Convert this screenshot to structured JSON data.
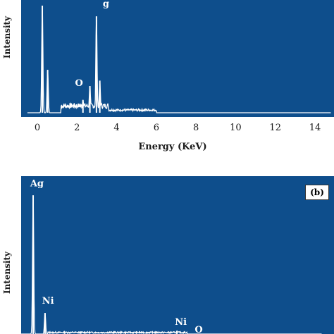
{
  "chart_data": [
    {
      "panel": "a",
      "type": "line",
      "xlabel": "Energy (KeV)",
      "ylabel": "Intensity",
      "xlim": [
        -0.5,
        14.8
      ],
      "xticks": [
        0,
        2,
        4,
        6,
        8,
        10,
        12,
        14
      ],
      "ylim": [
        0,
        1
      ],
      "grid": false,
      "peaks": [
        {
          "x": 0.25,
          "y": 1.0
        },
        {
          "x": 0.52,
          "y": 0.4
        },
        {
          "x": 2.3,
          "y": 0.12
        },
        {
          "x": 2.65,
          "y": 0.25
        },
        {
          "x": 2.98,
          "y": 0.9
        },
        {
          "x": 3.15,
          "y": 0.3
        }
      ],
      "annotations": [
        {
          "text": "O",
          "x": 1.9,
          "y": 0.25
        },
        {
          "text": "g",
          "x": 3.3,
          "y": 0.99
        }
      ]
    },
    {
      "panel": "b",
      "type": "line",
      "panel_tag": "(b)",
      "ylabel": "Intensity",
      "xlim": [
        -0.5,
        14.8
      ],
      "ylim": [
        0,
        1
      ],
      "grid": false,
      "peaks": [
        {
          "x": 0.25,
          "y": 0.92
        },
        {
          "x": 0.85,
          "y": 0.14
        },
        {
          "x": 7.5,
          "y": 0.02
        }
      ],
      "annotations": [
        {
          "text": "Ag",
          "x": 0.1,
          "y": 0.98
        },
        {
          "text": "Ni",
          "x": 0.7,
          "y": 0.2
        },
        {
          "text": "Ni",
          "x": 7.4,
          "y": 0.06
        },
        {
          "text": "O",
          "x": 8.4,
          "y": 0.01
        }
      ]
    }
  ]
}
